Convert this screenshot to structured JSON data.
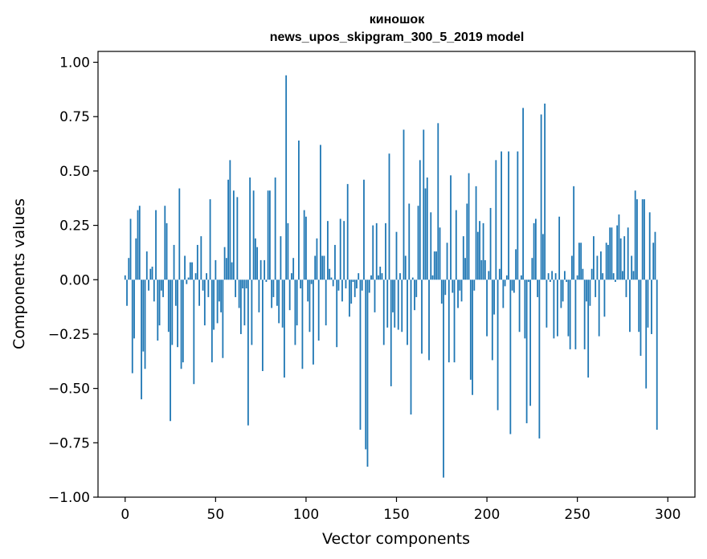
{
  "chart_data": {
    "type": "bar",
    "title": "киношок",
    "subtitle": "news_upos_skipgram_300_5_2019 model",
    "xlabel": "Vector components",
    "ylabel": "Components values",
    "xlim": [
      -15,
      315
    ],
    "ylim": [
      -1.0,
      1.05
    ],
    "xticks": [
      0,
      50,
      100,
      150,
      200,
      250,
      300
    ],
    "xtick_labels": [
      "0",
      "50",
      "100",
      "150",
      "200",
      "250",
      "300"
    ],
    "yticks": [
      1.0,
      0.75,
      0.5,
      0.25,
      0.0,
      -0.25,
      -0.5,
      -0.75,
      -1.0
    ],
    "ytick_labels": [
      "1.00",
      "0.75",
      "0.50",
      "0.25",
      "0.00",
      "−0.25",
      "−0.50",
      "−0.75",
      "−1.00"
    ],
    "grid": false,
    "bar_color": "#1f77b4",
    "values": [
      0.02,
      -0.12,
      0.1,
      0.28,
      -0.43,
      -0.27,
      0.19,
      0.32,
      0.34,
      -0.55,
      -0.33,
      -0.41,
      0.13,
      -0.05,
      0.05,
      0.06,
      -0.1,
      0.32,
      -0.28,
      -0.21,
      -0.05,
      -0.08,
      0.34,
      0.26,
      -0.24,
      -0.65,
      -0.3,
      0.16,
      -0.12,
      -0.31,
      0.42,
      -0.41,
      -0.38,
      0.11,
      -0.02,
      0.01,
      0.08,
      0.08,
      -0.48,
      0.03,
      0.16,
      -0.12,
      0.2,
      -0.05,
      -0.21,
      0.03,
      -0.08,
      0.37,
      -0.38,
      -0.23,
      0.09,
      -0.2,
      -0.1,
      -0.15,
      -0.36,
      0.15,
      0.1,
      0.46,
      0.55,
      0.08,
      0.41,
      -0.08,
      0.38,
      -0.13,
      -0.25,
      -0.04,
      -0.21,
      -0.04,
      -0.67,
      0.47,
      -0.3,
      0.41,
      0.19,
      0.15,
      -0.15,
      0.09,
      -0.42,
      0.09,
      -0.01,
      0.41,
      0.41,
      -0.13,
      -0.08,
      0.47,
      -0.12,
      -0.2,
      0.2,
      -0.22,
      -0.45,
      0.94,
      0.26,
      -0.14,
      0.03,
      0.1,
      -0.3,
      -0.21,
      0.64,
      -0.04,
      -0.41,
      0.32,
      0.29,
      -0.1,
      -0.24,
      -0.02,
      -0.39,
      0.11,
      0.19,
      -0.28,
      0.62,
      0.11,
      0.11,
      -0.21,
      0.27,
      0.05,
      0.01,
      -0.03,
      0.16,
      -0.31,
      -0.05,
      0.28,
      -0.1,
      0.27,
      -0.04,
      0.44,
      -0.17,
      -0.11,
      -0.01,
      -0.08,
      -0.04,
      0.03,
      -0.69,
      -0.05,
      0.46,
      -0.78,
      -0.86,
      -0.06,
      0.02,
      0.25,
      -0.15,
      0.26,
      0.02,
      0.06,
      0.03,
      -0.3,
      0.26,
      -0.22,
      0.58,
      -0.49,
      -0.15,
      -0.22,
      0.22,
      -0.23,
      0.03,
      -0.24,
      0.69,
      0.11,
      -0.3,
      0.35,
      -0.62,
      0.01,
      -0.14,
      -0.08,
      0.34,
      0.55,
      -0.34,
      0.69,
      0.42,
      0.47,
      -0.37,
      0.31,
      0.02,
      0.13,
      0.13,
      0.72,
      0.24,
      -0.11,
      -0.91,
      -0.07,
      0.17,
      -0.38,
      0.48,
      -0.06,
      -0.38,
      0.32,
      -0.13,
      -0.05,
      -0.1,
      0.2,
      0.1,
      0.35,
      0.49,
      -0.46,
      -0.53,
      -0.05,
      0.43,
      0.22,
      0.27,
      0.09,
      0.26,
      0.09,
      -0.26,
      0.04,
      0.33,
      -0.37,
      -0.16,
      0.55,
      -0.6,
      0.05,
      0.59,
      -0.13,
      -0.03,
      0.02,
      0.59,
      -0.71,
      -0.05,
      -0.06,
      0.14,
      0.59,
      -0.24,
      0.02,
      0.79,
      -0.27,
      -0.66,
      -0.01,
      -0.58,
      0.1,
      0.26,
      0.28,
      -0.08,
      -0.73,
      0.76,
      0.21,
      0.81,
      -0.22,
      0.03,
      -0.01,
      0.04,
      -0.27,
      0.03,
      -0.26,
      0.29,
      -0.13,
      -0.1,
      0.04,
      -0.01,
      -0.26,
      -0.32,
      0.11,
      0.43,
      -0.32,
      0.02,
      0.17,
      0.17,
      0.05,
      -0.32,
      -0.1,
      -0.45,
      -0.12,
      0.05,
      0.2,
      -0.08,
      0.11,
      -0.26,
      0.13,
      0.03,
      -0.17,
      0.17,
      0.16,
      0.24,
      0.24,
      0.03,
      -0.01,
      0.25,
      0.3,
      0.19,
      0.04,
      0.2,
      -0.08,
      0.24,
      -0.24,
      0.11,
      0.04,
      0.41,
      0.37,
      -0.24,
      -0.35,
      0.37,
      0.37,
      -0.5,
      -0.22,
      0.31,
      -0.25,
      0.17,
      0.22,
      -0.69
    ]
  }
}
